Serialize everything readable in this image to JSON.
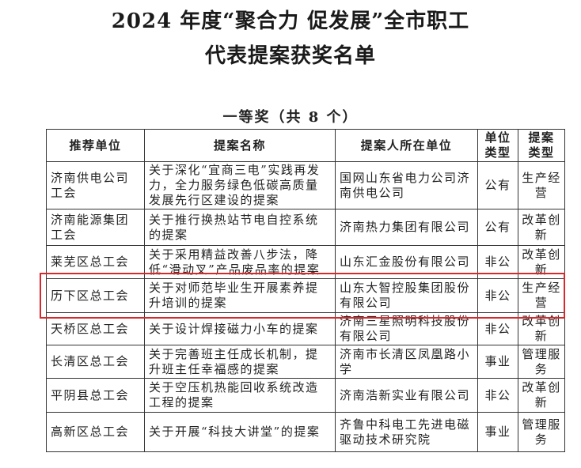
{
  "title_line1": "2024 年度“聚合力 促发展”全市职工",
  "title_line2": "代表提案获奖名单",
  "subtitle": "一等奖（共 8 个）",
  "table": {
    "headers": [
      "推荐单位",
      "提案名称",
      "提案人所在单位",
      "单位类型",
      "提案类型"
    ],
    "rows": [
      [
        "济南供电公司工会",
        "关于深化“宜商三电”实践再发力，全力服务绿色低碳高质量发展先行区建设的提案",
        "国网山东省电力公司济南供电公司",
        "公有",
        "生产经营"
      ],
      [
        "济南能源集团工会",
        "关于推行换热站节电自控系统的提案",
        "济南热力集团有限公司",
        "公有",
        "改革创新"
      ],
      [
        "莱芜区总工会",
        "关于采用精益改善八步法，降低“滑动叉”产品废品率的提案",
        "山东汇金股份有限公司",
        "非公",
        "改革创新"
      ],
      [
        "历下区总工会",
        "关于对师范毕业生开展素养提升培训的提案",
        "山东大智控股集团股份有限公司",
        "非公",
        "生产经营"
      ],
      [
        "天桥区总工会",
        "关于设计焊接磁力小车的提案",
        "济南三星照明科技股份有限公司",
        "非公",
        "改革创新"
      ],
      [
        "长清区总工会",
        "关于完善班主任成长机制，提升班主任幸福感的提案",
        "济南市长清区凤凰路小学",
        "事业",
        "管理服务"
      ],
      [
        "平阴县总工会",
        "关于空压机热能回收系统改造工程的提案",
        "济南浩新实业有限公司",
        "非公",
        "改革创新"
      ],
      [
        "高新区总工会",
        "关于开展“科技大讲堂”的提案",
        "齐鲁中科电工先进电磁驱动技术研究院",
        "事业",
        "管理服务"
      ]
    ]
  },
  "highlight_color": "#d8282c"
}
